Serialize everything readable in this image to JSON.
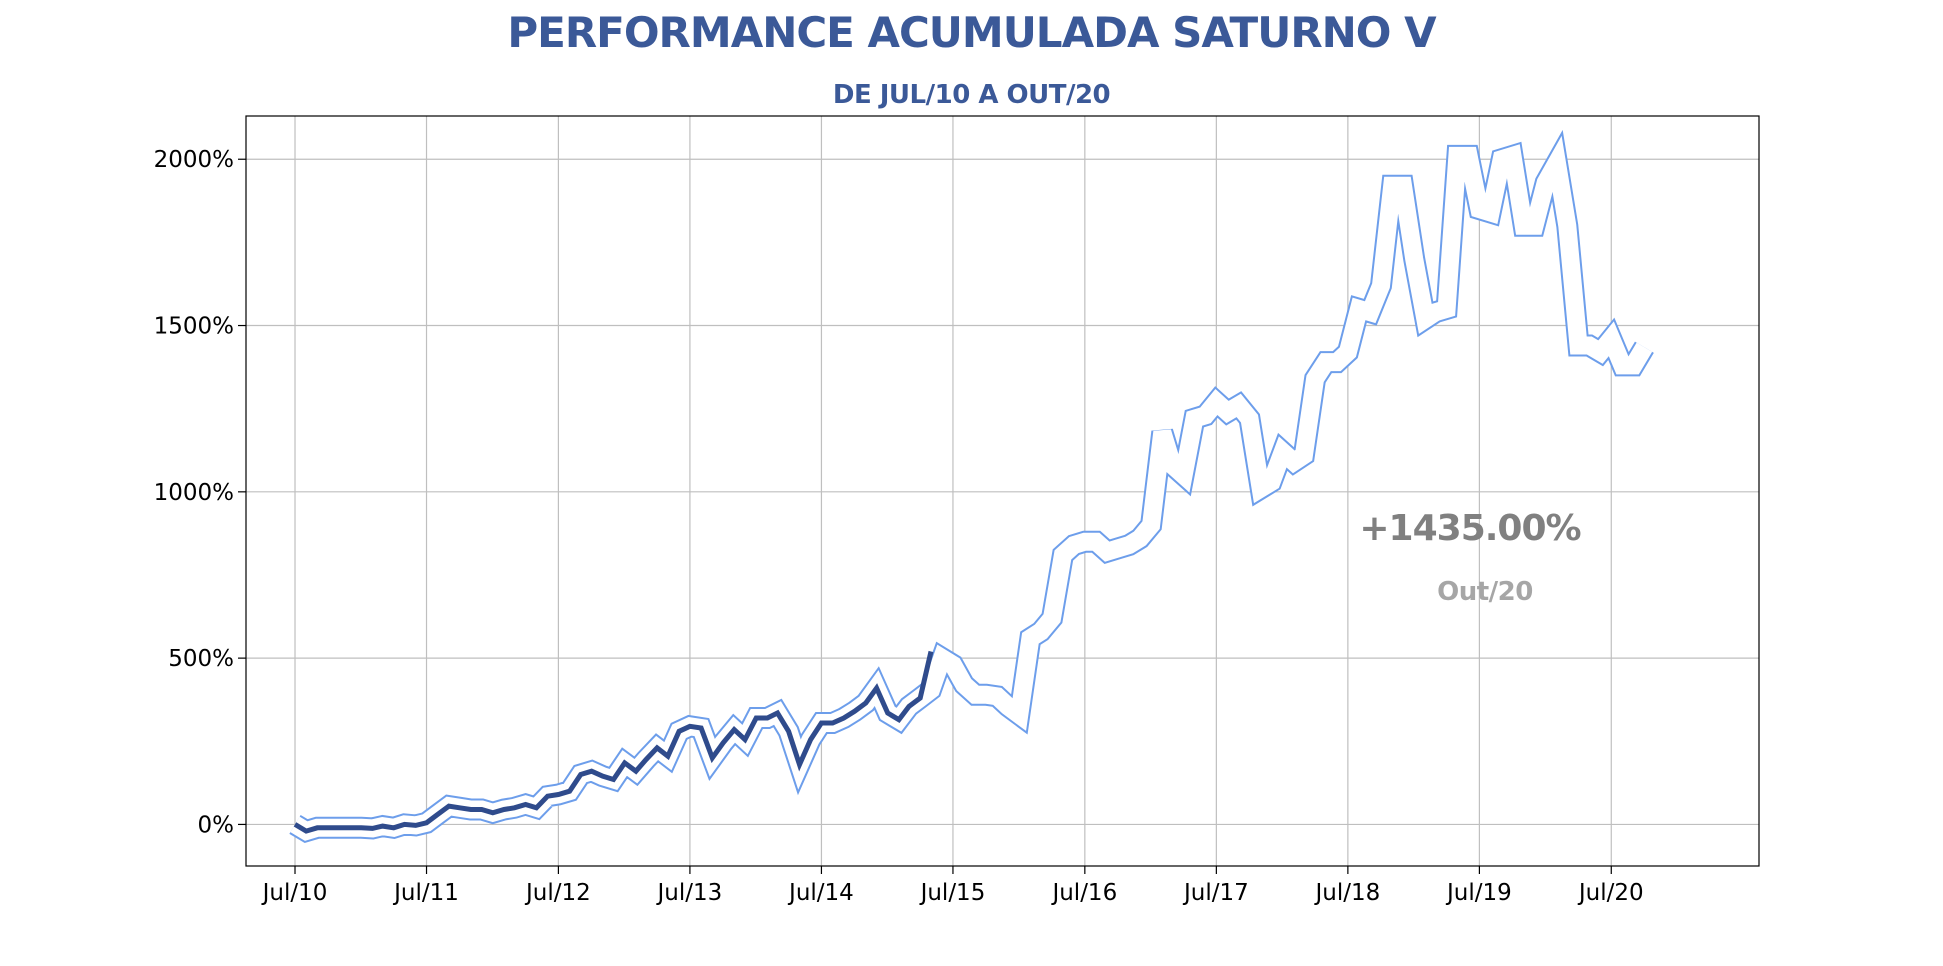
{
  "chart_data": {
    "type": "line",
    "title": "PERFORMANCE ACUMULADA SATURNO V",
    "subtitle": "DE JUL/10 A OUT/20",
    "xlabel": "",
    "ylabel": "",
    "ylim": [
      -125,
      2130
    ],
    "xlim": [
      "2010-02-15",
      "2021-08-15"
    ],
    "grid": true,
    "y_ticks": [
      0,
      500,
      1000,
      1500,
      2000
    ],
    "y_tick_labels": [
      "0%",
      "500%",
      "1000%",
      "1500%",
      "2000%"
    ],
    "x_ticks": [
      "2010-07-01",
      "2011-07-01",
      "2012-07-01",
      "2013-07-01",
      "2014-07-01",
      "2015-07-01",
      "2016-07-01",
      "2017-07-01",
      "2018-07-01",
      "2019-07-01",
      "2020-07-01"
    ],
    "x_tick_labels": [
      "Jul/10",
      "Jul/11",
      "Jul/12",
      "Jul/13",
      "Jul/14",
      "Jul/15",
      "Jul/16",
      "Jul/17",
      "Jul/18",
      "Jul/19",
      "Jul/20"
    ],
    "annotation": {
      "value": "+1435.00%",
      "date": "Out/20"
    },
    "colors": {
      "title": "#3B5998",
      "dark_line": "#2F4B8C",
      "light_line": "#6D9EEB",
      "grid": "#BFBFBF",
      "annotation_value": "#808080",
      "annotation_date": "#A6A6A6"
    },
    "series": [
      {
        "style": "outline",
        "x": [
          "2010-07-01",
          "2010-08-01",
          "2010-09-01",
          "2010-10-01",
          "2010-11-01",
          "2010-12-01",
          "2011-01-01",
          "2011-02-01",
          "2011-03-01",
          "2011-04-01",
          "2011-05-01",
          "2011-06-01",
          "2011-07-01",
          "2011-08-01",
          "2011-09-01",
          "2011-10-01",
          "2011-11-01",
          "2011-12-01",
          "2012-01-01",
          "2012-02-01",
          "2012-03-01",
          "2012-04-01",
          "2012-05-01",
          "2012-06-01",
          "2012-07-01",
          "2012-08-01",
          "2012-09-01",
          "2012-10-01",
          "2012-11-01",
          "2012-12-01",
          "2013-01-01",
          "2013-02-01",
          "2013-03-01",
          "2013-04-01",
          "2013-05-01",
          "2013-06-01",
          "2013-07-01",
          "2013-08-01",
          "2013-09-01",
          "2013-10-01",
          "2013-11-01",
          "2013-12-01",
          "2014-01-01",
          "2014-02-01",
          "2014-03-01",
          "2014-04-01",
          "2014-05-01",
          "2014-06-01",
          "2014-07-01",
          "2014-08-01",
          "2014-09-01",
          "2014-10-01",
          "2014-11-01",
          "2014-12-01",
          "2015-01-01",
          "2015-02-01",
          "2015-03-01",
          "2015-04-01",
          "2015-05-01",
          "2015-06-01",
          "2015-07-01",
          "2015-08-01",
          "2015-09-01",
          "2015-10-01",
          "2015-11-01",
          "2015-12-01",
          "2016-01-01",
          "2016-02-01",
          "2016-03-01",
          "2016-04-01",
          "2016-05-01",
          "2016-06-01",
          "2016-07-01",
          "2016-08-01",
          "2016-09-01",
          "2016-10-01",
          "2016-11-01",
          "2016-12-01",
          "2017-01-01",
          "2017-02-01",
          "2017-03-01",
          "2017-04-01",
          "2017-05-01",
          "2017-06-01",
          "2017-07-01",
          "2017-08-01",
          "2017-09-01",
          "2017-10-01",
          "2017-11-01",
          "2017-12-01",
          "2018-01-01",
          "2018-02-01",
          "2018-03-01",
          "2018-04-01",
          "2018-05-01",
          "2018-06-01",
          "2018-07-01",
          "2018-08-01",
          "2018-09-01",
          "2018-10-01",
          "2018-11-01",
          "2018-12-01",
          "2019-01-01",
          "2019-02-01",
          "2019-03-01",
          "2019-04-01",
          "2019-05-01",
          "2019-06-01",
          "2019-07-01",
          "2019-08-01",
          "2019-09-01",
          "2019-10-01",
          "2019-11-01",
          "2019-12-01",
          "2020-01-01",
          "2020-02-01",
          "2020-03-01",
          "2020-04-01",
          "2020-05-01",
          "2020-06-01",
          "2020-07-01",
          "2020-08-01",
          "2020-09-01",
          "2020-10-01"
        ],
        "values": [
          0,
          -20,
          -10,
          -10,
          -10,
          -10,
          -10,
          -12,
          -5,
          -10,
          0,
          -3,
          5,
          30,
          55,
          50,
          45,
          45,
          35,
          45,
          50,
          60,
          50,
          85,
          90,
          100,
          150,
          160,
          145,
          135,
          185,
          160,
          195,
          230,
          205,
          280,
          295,
          290,
          200,
          245,
          285,
          255,
          320,
          320,
          335,
          280,
          180,
          255,
          305,
          305,
          320,
          340,
          365,
          410,
          335,
          315,
          355,
          380,
          405,
          500,
          480,
          420,
          390,
          390,
          385,
          355,
          330,
          560,
          580,
          620,
          810,
          840,
          850,
          850,
          820,
          830,
          840,
          860,
          900,
          1180,
          1080,
          1050,
          1220,
          1230,
          1270,
          1240,
          1260,
          1220,
          1010,
          1030,
          1120,
          1090,
          1110,
          1340,
          1390,
          1390,
          1420,
          1550,
          1540,
          1620,
          1920,
          1920,
          1700,
          1520,
          1540,
          1550,
          2010,
          2010,
          1850,
          1840,
          2000,
          2010,
          1800,
          1800,
          1930,
          1990,
          1800,
          1440,
          1440,
          1420,
          1460,
          1380,
          1380,
          1435
        ]
      },
      {
        "style": "dark",
        "x": [
          "2010-07-01",
          "2010-08-01",
          "2010-09-01",
          "2010-10-01",
          "2010-11-01",
          "2010-12-01",
          "2011-01-01",
          "2011-02-01",
          "2011-03-01",
          "2011-04-01",
          "2011-05-01",
          "2011-06-01",
          "2011-07-01",
          "2011-08-01",
          "2011-09-01",
          "2011-10-01",
          "2011-11-01",
          "2011-12-01",
          "2012-01-01",
          "2012-02-01",
          "2012-03-01",
          "2012-04-01",
          "2012-05-01",
          "2012-06-01",
          "2012-07-01",
          "2012-08-01",
          "2012-09-01",
          "2012-10-01",
          "2012-11-01",
          "2012-12-01",
          "2013-01-01",
          "2013-02-01",
          "2013-03-01",
          "2013-04-01",
          "2013-05-01",
          "2013-06-01",
          "2013-07-01",
          "2013-08-01",
          "2013-09-01",
          "2013-10-01",
          "2013-11-01",
          "2013-12-01",
          "2014-01-01",
          "2014-02-01",
          "2014-03-01",
          "2014-04-01",
          "2014-05-01",
          "2014-06-01",
          "2014-07-01",
          "2014-08-01",
          "2014-09-01",
          "2014-10-01",
          "2014-11-01",
          "2014-12-01",
          "2015-01-01",
          "2015-02-01",
          "2015-03-01",
          "2015-04-01",
          "2015-05-01"
        ],
        "values": [
          0,
          -20,
          -10,
          -10,
          -10,
          -10,
          -10,
          -12,
          -5,
          -10,
          0,
          -3,
          5,
          30,
          55,
          50,
          45,
          45,
          35,
          45,
          50,
          60,
          50,
          85,
          90,
          100,
          150,
          160,
          145,
          135,
          185,
          160,
          195,
          230,
          205,
          280,
          295,
          290,
          200,
          245,
          285,
          255,
          320,
          320,
          335,
          280,
          180,
          255,
          305,
          305,
          320,
          340,
          365,
          410,
          335,
          315,
          355,
          380,
          520
        ]
      }
    ]
  }
}
